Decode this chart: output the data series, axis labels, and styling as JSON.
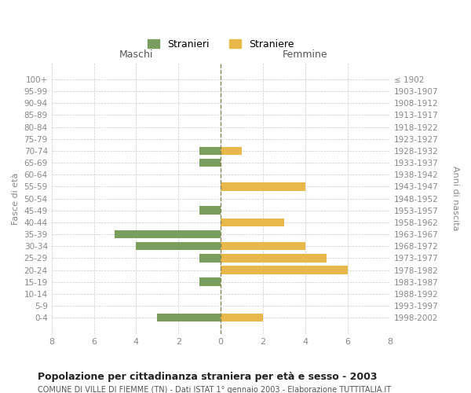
{
  "age_groups": [
    "100+",
    "95-99",
    "90-94",
    "85-89",
    "80-84",
    "75-79",
    "70-74",
    "65-69",
    "60-64",
    "55-59",
    "50-54",
    "45-49",
    "40-44",
    "35-39",
    "30-34",
    "25-29",
    "20-24",
    "15-19",
    "10-14",
    "5-9",
    "0-4"
  ],
  "birth_years": [
    "≤ 1902",
    "1903-1907",
    "1908-1912",
    "1913-1917",
    "1918-1922",
    "1923-1927",
    "1928-1932",
    "1933-1937",
    "1938-1942",
    "1943-1947",
    "1948-1952",
    "1953-1957",
    "1958-1962",
    "1963-1967",
    "1968-1972",
    "1973-1977",
    "1978-1982",
    "1983-1987",
    "1988-1992",
    "1993-1997",
    "1998-2002"
  ],
  "maschi": [
    0,
    0,
    0,
    0,
    0,
    0,
    1,
    1,
    0,
    0,
    0,
    1,
    0,
    5,
    4,
    1,
    0,
    1,
    0,
    0,
    3
  ],
  "femmine": [
    0,
    0,
    0,
    0,
    0,
    0,
    1,
    0,
    0,
    4,
    0,
    0,
    3,
    0,
    4,
    5,
    6,
    0,
    0,
    0,
    2
  ],
  "color_maschi": "#7a9e5e",
  "color_femmine": "#e8b84b",
  "xlim": 8,
  "title": "Popolazione per cittadinanza straniera per età e sesso - 2003",
  "subtitle": "COMUNE DI VILLE DI FIEMME (TN) - Dati ISTAT 1° gennaio 2003 - Elaborazione TUTTITALIA.IT",
  "ylabel_left": "Fasce di età",
  "ylabel_right": "Anni di nascita",
  "header_maschi": "Maschi",
  "header_femmine": "Femmine",
  "legend_maschi": "Stranieri",
  "legend_femmine": "Straniere",
  "background_color": "#ffffff",
  "grid_color": "#cccccc",
  "tick_color": "#888888",
  "bar_height": 0.7
}
